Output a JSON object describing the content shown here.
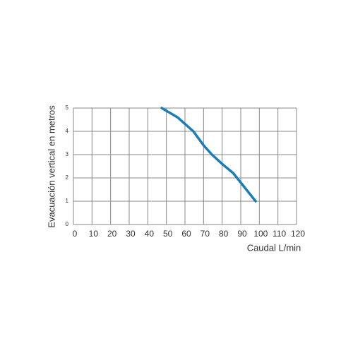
{
  "chart_data": {
    "type": "line",
    "xlabel": "Caudal L/min",
    "ylabel": "Evacuación vertical en metros",
    "x": [
      47.5,
      56,
      64.5,
      70,
      74.5,
      80,
      86,
      91,
      98
    ],
    "series": [
      {
        "color": "#1b7db8",
        "values": [
          5,
          4.6,
          4,
          3.4,
          3,
          2.6,
          2.2,
          1.7,
          1
        ]
      }
    ],
    "xlim": [
      0,
      120
    ],
    "xticks": [
      0,
      10,
      20,
      30,
      40,
      50,
      60,
      70,
      80,
      90,
      100,
      110,
      120
    ],
    "ylim": [
      0,
      5
    ],
    "yticks": [
      0,
      1,
      2,
      3,
      4,
      5
    ],
    "grid": true
  }
}
